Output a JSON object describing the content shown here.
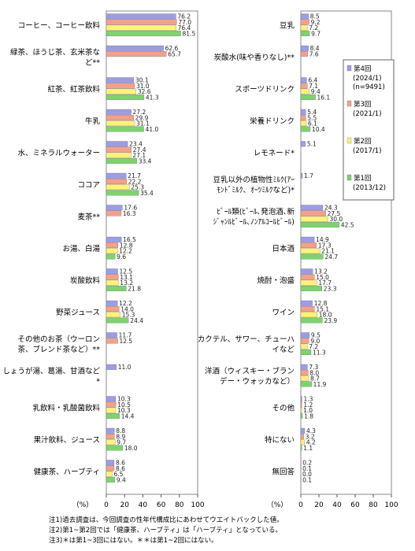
{
  "chart_data": {
    "type": "bar",
    "orientation": "horizontal",
    "unit_label": "（%）",
    "xlim": [
      0,
      100
    ],
    "xticks": [
      0,
      20,
      40,
      60,
      80,
      100
    ],
    "series": [
      {
        "name": "第4回",
        "detail": [
          "(2024/1)",
          "(n=9491)"
        ],
        "color": "#9b9ee6"
      },
      {
        "name": "第3回",
        "detail": [
          "(2021/1)"
        ],
        "color": "#f5a08c"
      },
      {
        "name": "第2回",
        "detail": [
          "(2017/1)"
        ],
        "color": "#fff27a"
      },
      {
        "name": "第1回",
        "detail": [
          "(2013/12)"
        ],
        "color": "#7ed36e"
      }
    ],
    "panels": [
      {
        "categories": [
          {
            "label": [
              "コーヒー、コーヒー飲料"
            ],
            "values": [
              76.2,
              77.0,
              76.4,
              81.5
            ]
          },
          {
            "label": [
              "緑茶、ほうじ茶、玄米茶な",
              "ど**"
            ],
            "values": [
              62.6,
              65.7,
              null,
              null
            ]
          },
          {
            "label": [
              "紅茶、紅茶飲料"
            ],
            "values": [
              30.1,
              31.0,
              32.6,
              41.3
            ]
          },
          {
            "label": [
              "牛乳"
            ],
            "values": [
              27.2,
              29.9,
              31.1,
              41.0
            ]
          },
          {
            "label": [
              "水、ミネラルウォーター"
            ],
            "values": [
              23.4,
              27.4,
              27.1,
              33.4
            ]
          },
          {
            "label": [
              "ココア"
            ],
            "values": [
              21.7,
              22.2,
              25.3,
              35.4
            ]
          },
          {
            "label": [
              "麦茶**"
            ],
            "values": [
              17.6,
              16.3,
              null,
              null
            ]
          },
          {
            "label": [
              "お湯、白湯"
            ],
            "values": [
              16.5,
              12.8,
              12.2,
              9.6
            ]
          },
          {
            "label": [
              "炭酸飲料"
            ],
            "values": [
              12.5,
              13.1,
              13.2,
              21.8
            ]
          },
          {
            "label": [
              "野菜ジュース"
            ],
            "values": [
              12.2,
              14.0,
              15.3,
              24.4
            ]
          },
          {
            "label": [
              "その他のお茶（ウーロン",
              "茶、ブレンド茶など）**"
            ],
            "values": [
              11.7,
              12.5,
              null,
              null
            ]
          },
          {
            "label": [
              "しょうが湯、葛湯、甘酒など",
              "*"
            ],
            "values": [
              11.0,
              null,
              null,
              null
            ]
          },
          {
            "label": [
              "乳飲料・乳酸菌飲料"
            ],
            "values": [
              10.3,
              10.5,
              10.3,
              14.4
            ]
          },
          {
            "label": [
              "果汁飲料、ジュース"
            ],
            "values": [
              8.8,
              8.9,
              9.7,
              18.0
            ]
          },
          {
            "label": [
              "健康茶、ハーブティ"
            ],
            "values": [
              8.6,
              8.6,
              6.5,
              9.4
            ]
          }
        ]
      },
      {
        "categories": [
          {
            "label": [
              "豆乳"
            ],
            "values": [
              8.5,
              9.2,
              7.2,
              9.7
            ]
          },
          {
            "label": [
              "炭酸水(味や香りなし)**"
            ],
            "values": [
              8.4,
              7.6,
              null,
              null
            ]
          },
          {
            "label": [
              "スポーツドリンク"
            ],
            "values": [
              6.4,
              7.1,
              9.4,
              16.1
            ]
          },
          {
            "label": [
              "栄養ドリンク"
            ],
            "values": [
              5.4,
              5.5,
              6.1,
              10.4
            ]
          },
          {
            "label": [
              "レモネード*"
            ],
            "values": [
              5.1,
              null,
              null,
              null
            ]
          },
          {
            "label": [
              "豆乳以外の植物性ﾐﾙｸ(ｱｰ",
              "ﾓﾝﾄﾞﾐﾙｸ、ｵｰﾂﾐﾙｸなど)*"
            ],
            "values": [
              1.7,
              null,
              null,
              null
            ]
          },
          {
            "label": [
              "ﾋﾞｰﾙ類(ﾋﾞｰﾙ､発泡酒､新",
              "ｼﾞｬﾝﾙﾋﾞｰﾙ､ﾉﾝｱﾙｺｰﾙﾋﾞｰﾙ)"
            ],
            "values": [
              24.3,
              27.5,
              30.0,
              42.5
            ]
          },
          {
            "label": [
              "日本酒"
            ],
            "values": [
              14.9,
              17.3,
              21.1,
              24.7
            ]
          },
          {
            "label": [
              "焼酎・泡盛"
            ],
            "values": [
              13.2,
              15.0,
              17.7,
              23.3
            ]
          },
          {
            "label": [
              "ワイン"
            ],
            "values": [
              12.8,
              15.1,
              18.0,
              23.9
            ]
          },
          {
            "label": [
              "カクテル、サワー、チューハ",
              "イなど"
            ],
            "values": [
              9.5,
              9.0,
              7.2,
              11.3
            ]
          },
          {
            "label": [
              "洋酒（ウィスキー・ブラン",
              "デー・ウォッカなど）"
            ],
            "values": [
              7.3,
              8.0,
              8.7,
              11.9
            ]
          },
          {
            "label": [
              "その他"
            ],
            "values": [
              1.3,
              1.2,
              1.0,
              1.8
            ]
          },
          {
            "label": [
              "特にない"
            ],
            "values": [
              4.3,
              3.2,
              4.2,
              1.1
            ]
          },
          {
            "label": [
              "無回答"
            ],
            "values": [
              0.2,
              0.1,
              0.0,
              0.1
            ]
          }
        ]
      }
    ],
    "notes": [
      "注1)過去調査は、今回調査の性年代構成比にあわせてウエイトバックした値。",
      "注2)第1~第2回では「健康茶、ハーブティ」は「ハーブティ」となっている。",
      "注3)＊は第1~3回にはない。＊＊は第1~2回にはない。"
    ]
  }
}
